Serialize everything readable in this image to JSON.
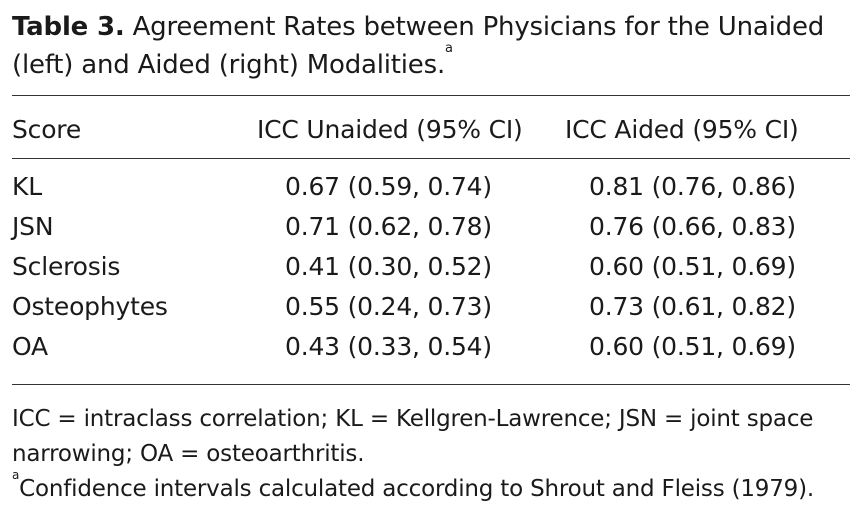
{
  "caption": {
    "label": "Table 3.",
    "text": "Agreement Rates between Physicians for the Unaided (left) and Aided (right) Modalities.",
    "superscript": "a"
  },
  "table": {
    "headers": [
      "Score",
      "ICC Unaided (95% CI)",
      "ICC Aided (95% CI)"
    ],
    "rows": [
      {
        "score": "KL",
        "unaided": "0.67 (0.59, 0.74)",
        "aided": "0.81 (0.76, 0.86)"
      },
      {
        "score": "JSN",
        "unaided": "0.71 (0.62, 0.78)",
        "aided": "0.76 (0.66, 0.83)"
      },
      {
        "score": "Sclerosis",
        "unaided": "0.41 (0.30, 0.52)",
        "aided": "0.60 (0.51, 0.69)"
      },
      {
        "score": "Osteophytes",
        "unaided": "0.55 (0.24, 0.73)",
        "aided": "0.73 (0.61, 0.82)"
      },
      {
        "score": "OA",
        "unaided": "0.43 (0.33, 0.54)",
        "aided": "0.60 (0.51, 0.69)"
      }
    ]
  },
  "footnotes": {
    "abbreviations": "ICC = intraclass correlation; KL = Kellgren-Lawrence; JSN = joint space narrowing; OA = osteoarthritis.",
    "note_marker": "a",
    "note_text": "Confidence intervals calculated according to Shrout and Fleiss (1979)."
  }
}
